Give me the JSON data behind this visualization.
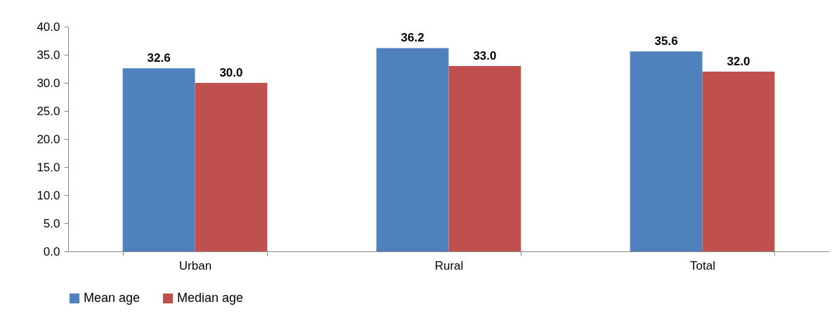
{
  "chart_data": {
    "type": "bar",
    "categories": [
      "Urban",
      "Rural",
      "Total"
    ],
    "series": [
      {
        "name": "Mean age",
        "color": "#4f81bd",
        "values": [
          32.6,
          36.2,
          35.6
        ],
        "value_labels": [
          "32.6",
          "36.2",
          "35.6"
        ]
      },
      {
        "name": "Median age",
        "color": "#c0504d",
        "values": [
          30.0,
          33.0,
          32.0
        ],
        "value_labels": [
          "30.0",
          "33.0",
          "32.0"
        ]
      }
    ],
    "ylim": [
      0,
      40
    ],
    "yticks": [
      {
        "value": 0,
        "label": "0.0"
      },
      {
        "value": 5,
        "label": "5.0"
      },
      {
        "value": 10,
        "label": "10.0"
      },
      {
        "value": 15,
        "label": "15.0"
      },
      {
        "value": 20,
        "label": "20.0"
      },
      {
        "value": 25,
        "label": "25.0"
      },
      {
        "value": 30,
        "label": "30.0"
      },
      {
        "value": 35,
        "label": "35.0"
      },
      {
        "value": 40,
        "label": "40.0"
      }
    ],
    "grid": false,
    "legend": "bottom"
  }
}
